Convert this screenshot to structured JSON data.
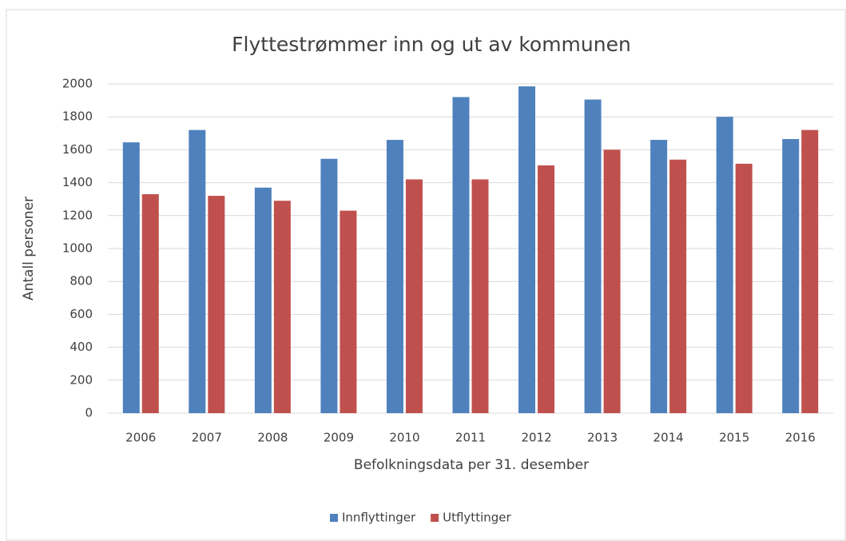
{
  "chart_data": {
    "type": "bar",
    "title": "Flyttestrømmer inn og ut av kommunen",
    "x_label": "Befolkningsdata per 31. desember",
    "y_label": "Antall personer",
    "categories": [
      "2006",
      "2007",
      "2008",
      "2009",
      "2010",
      "2011",
      "2012",
      "2013",
      "2014",
      "2015",
      "2016"
    ],
    "series": [
      {
        "name": "Innflyttinger",
        "color": "#4f81bd",
        "values": [
          1645,
          1720,
          1370,
          1545,
          1660,
          1920,
          1985,
          1905,
          1660,
          1800,
          1665
        ]
      },
      {
        "name": "Utflyttinger",
        "color": "#c0504d",
        "values": [
          1330,
          1320,
          1290,
          1230,
          1420,
          1420,
          1505,
          1600,
          1540,
          1515,
          1720
        ]
      }
    ],
    "ylim": [
      0,
      2000
    ],
    "yticks": [
      0,
      200,
      400,
      600,
      800,
      1000,
      1200,
      1400,
      1600,
      1800,
      2000
    ],
    "grid": true,
    "legend": "bottom"
  }
}
